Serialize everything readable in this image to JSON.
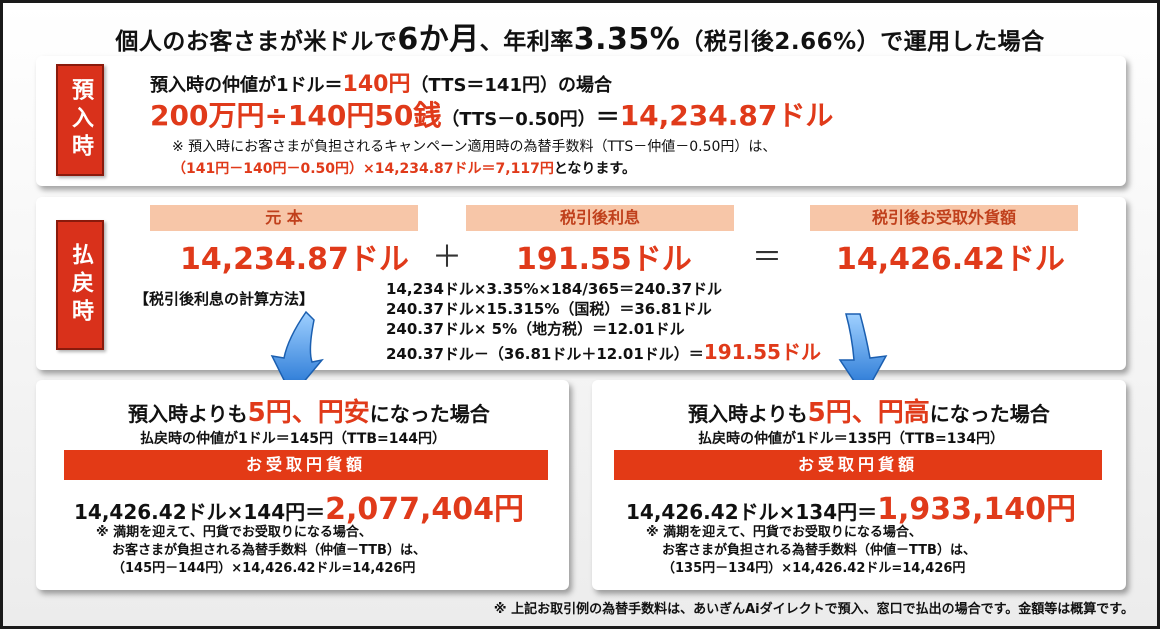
{
  "title": {
    "prefix": "個人のお客さまが米ドルで",
    "term": "6か月",
    "mid": "、年利率",
    "rate": "3.35%",
    "suffix": "（税引後2.66%）で運用した場合"
  },
  "deposit": {
    "label": "預入時",
    "line1_prefix": "預入時の仲値が1ドル＝",
    "line1_value": "140円",
    "line1_suffix": "（TTS＝141円）の場合",
    "calc_amount": "200万円÷140円50銭",
    "calc_note": "（TTS－0.50円）",
    "calc_eq": "＝",
    "calc_result": "14,234.87ドル",
    "note1": "※ 預入時にお客さまが負担されるキャンペーン適用時の為替手数料（TTS－仲値－0.50円）は、",
    "note2_red": "（141円－140円－0.50円）×14,234.87ドル＝7,117円",
    "note2_tail": "となります。"
  },
  "payout": {
    "label": "払戻時",
    "principal_head": "元 本",
    "principal_value": "14,234.87ドル",
    "plus": "＋",
    "interest_head": "税引後利息",
    "interest_value": "191.55ドル",
    "equals": "＝",
    "total_head": "税引後お受取外貨額",
    "total_value": "14,426.42ドル",
    "method_label": "【税引後利息の計算方法】",
    "calc1": "14,234ドル×3.35%×184/365＝240.37ドル",
    "calc2": "240.37ドル×15.315%（国税）＝36.81ドル",
    "calc3": "240.37ドル× 5%（地方税）＝12.01ドル",
    "calc4_prefix": "240.37ドル－（36.81ドル＋12.01ドル）＝",
    "calc4_result": "191.55ドル"
  },
  "weak_yen": {
    "heading_prefix": "預入時よりも",
    "heading_red": "5円、円安",
    "heading_suffix": "になった場合",
    "sub": "払戻時の仲値が1ドル＝145円（TTB=144円）",
    "bar": "お受取円貨額",
    "calc_prefix": "14,426.42ドル×144円＝",
    "calc_result": "2,077,404円",
    "note1": "※ 満期を迎えて、円貨でお受取りになる場合、",
    "note2": "お客さまが負担される為替手数料（仲値－TTB）は、",
    "note3": "（145円－144円）×14,426.42ドル=14,426円"
  },
  "strong_yen": {
    "heading_prefix": "預入時よりも",
    "heading_red": "5円、円高",
    "heading_suffix": "になった場合",
    "sub": "払戻時の仲値が1ドル＝135円（TTB=134円）",
    "bar": "お受取円貨額",
    "calc_prefix": "14,426.42ドル×134円＝",
    "calc_result": "1,933,140円",
    "note1": "※ 満期を迎えて、円貨でお受取りになる場合、",
    "note2": "お客さまが負担される為替手数料（仲値－TTB）は、",
    "note3": "（135円－134円）×14,426.42ドル=14,426円"
  },
  "footnote": "※ 上記お取引例の為替手数料は、あいぎんAiダイレクトで預入、窓口で払出の場合です。金額等は概算です。",
  "colors": {
    "accent": "#e03a1a",
    "label_bg": "#d9311b",
    "head_bg": "#f7c6a8",
    "arrow": "#2a7fd6"
  }
}
